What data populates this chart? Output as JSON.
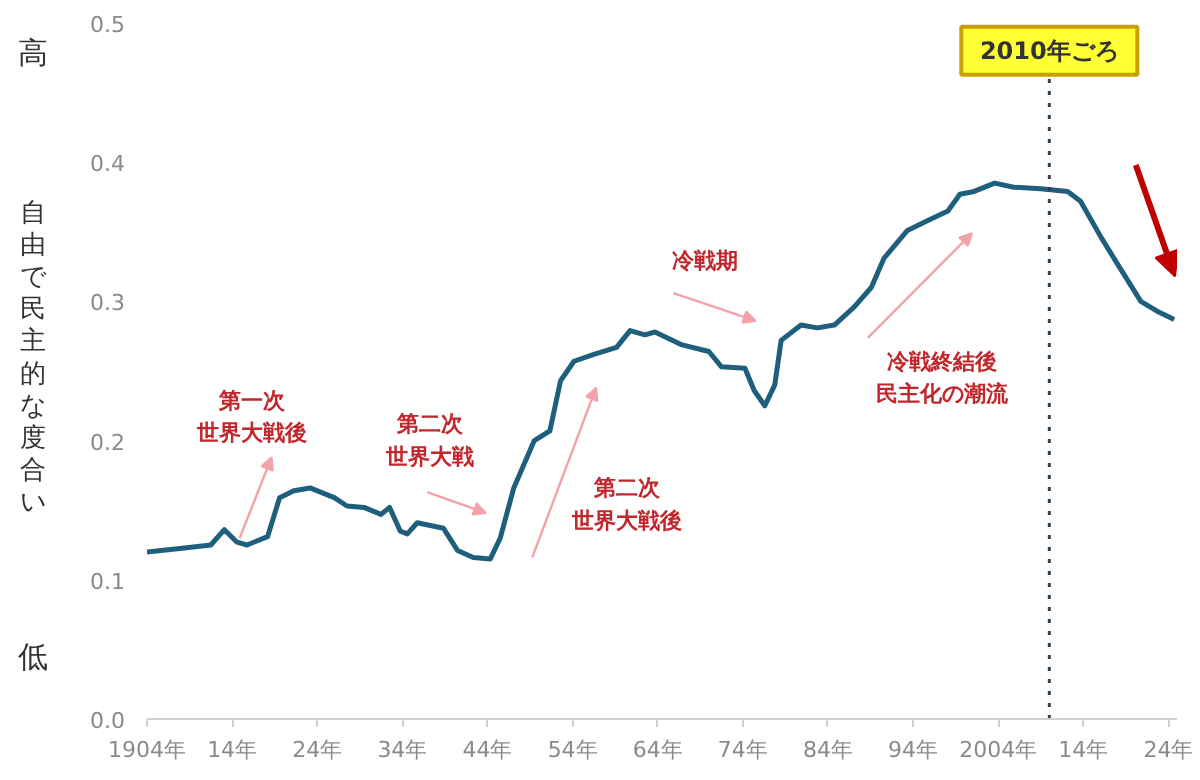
{
  "chart_data": {
    "type": "line",
    "ylabel": "自由で民主的な度合い",
    "x": [
      "1904-01",
      "1908-09",
      "1911-07",
      "1913-02",
      "1914-08",
      "1915-10",
      "1918-03",
      "1919-08",
      "1921-04",
      "1923-03",
      "1926-01",
      "1927-07",
      "1929-07",
      "1931-07",
      "1932-07",
      "1933-10",
      "1934-08",
      "1935-10",
      "1938-11",
      "1940-07",
      "1942-05",
      "1944-05",
      "1945-07",
      "1947-02",
      "1949-07",
      "1951-05",
      "1952-08",
      "1954-03",
      "1956-07",
      "1959-03",
      "1960-10",
      "1962-07",
      "1963-09",
      "1966-10",
      "1970-01",
      "1971-07",
      "1974-04",
      "1975-05",
      "1976-08",
      "1977-10",
      "1978-07",
      "1980-11",
      "1982-10",
      "1984-10",
      "1987-02",
      "1989-02",
      "1990-08",
      "1993-05",
      "1995-09",
      "1998-02",
      "1999-07",
      "2001-03",
      "2003-08",
      "2005-11",
      "2009-01",
      "2012-03",
      "2013-09",
      "2016-02",
      "2018-01",
      "2020-10",
      "2022-09",
      "2024-09"
    ],
    "series": [
      {
        "color": "#1e5f7e",
        "values": [
          0.12,
          0.123,
          0.125,
          0.136,
          0.127,
          0.125,
          0.131,
          0.159,
          0.164,
          0.166,
          0.159,
          0.153,
          0.152,
          0.147,
          0.152,
          0.135,
          0.133,
          0.141,
          0.137,
          0.121,
          0.116,
          0.115,
          0.13,
          0.166,
          0.2,
          0.207,
          0.243,
          0.257,
          0.262,
          0.267,
          0.279,
          0.276,
          0.278,
          0.269,
          0.264,
          0.253,
          0.252,
          0.236,
          0.225,
          0.24,
          0.272,
          0.283,
          0.281,
          0.283,
          0.296,
          0.31,
          0.331,
          0.351,
          0.358,
          0.365,
          0.377,
          0.379,
          0.385,
          0.382,
          0.381,
          0.379,
          0.372,
          0.346,
          0.327,
          0.3,
          0.293,
          0.287
        ]
      }
    ],
    "xlim": [
      "1904",
      "2025"
    ],
    "xticks": [
      {
        "value": "1904",
        "label": "1904年"
      },
      {
        "value": "1914",
        "label": "14年"
      },
      {
        "value": "1924",
        "label": "24年"
      },
      {
        "value": "1934",
        "label": "34年"
      },
      {
        "value": "1944",
        "label": "44年"
      },
      {
        "value": "1954",
        "label": "54年"
      },
      {
        "value": "1964",
        "label": "64年"
      },
      {
        "value": "1974",
        "label": "74年"
      },
      {
        "value": "1984",
        "label": "84年"
      },
      {
        "value": "1994",
        "label": "94年"
      },
      {
        "value": "2004",
        "label": "2004年"
      },
      {
        "value": "2014",
        "label": "14年"
      },
      {
        "value": "2024",
        "label": "24年"
      }
    ],
    "ylim": [
      0,
      0.5
    ],
    "yticks": [
      {
        "value": 0,
        "label": "0.0"
      },
      0.1,
      0.2,
      0.3,
      0.4,
      0.5
    ],
    "grid": false,
    "ref_lines": [
      {
        "axis": "x",
        "value": "2010",
        "label": "2010年ごろ",
        "color": "#2b3f55",
        "line_style": "dotted"
      }
    ],
    "annotations": [
      "高",
      "低",
      "第一次世界大戦後",
      "第二次世界大戦",
      "第二次世界大戦後",
      "冷戦期",
      "冷戦終結後民主化の潮流"
    ]
  }
}
